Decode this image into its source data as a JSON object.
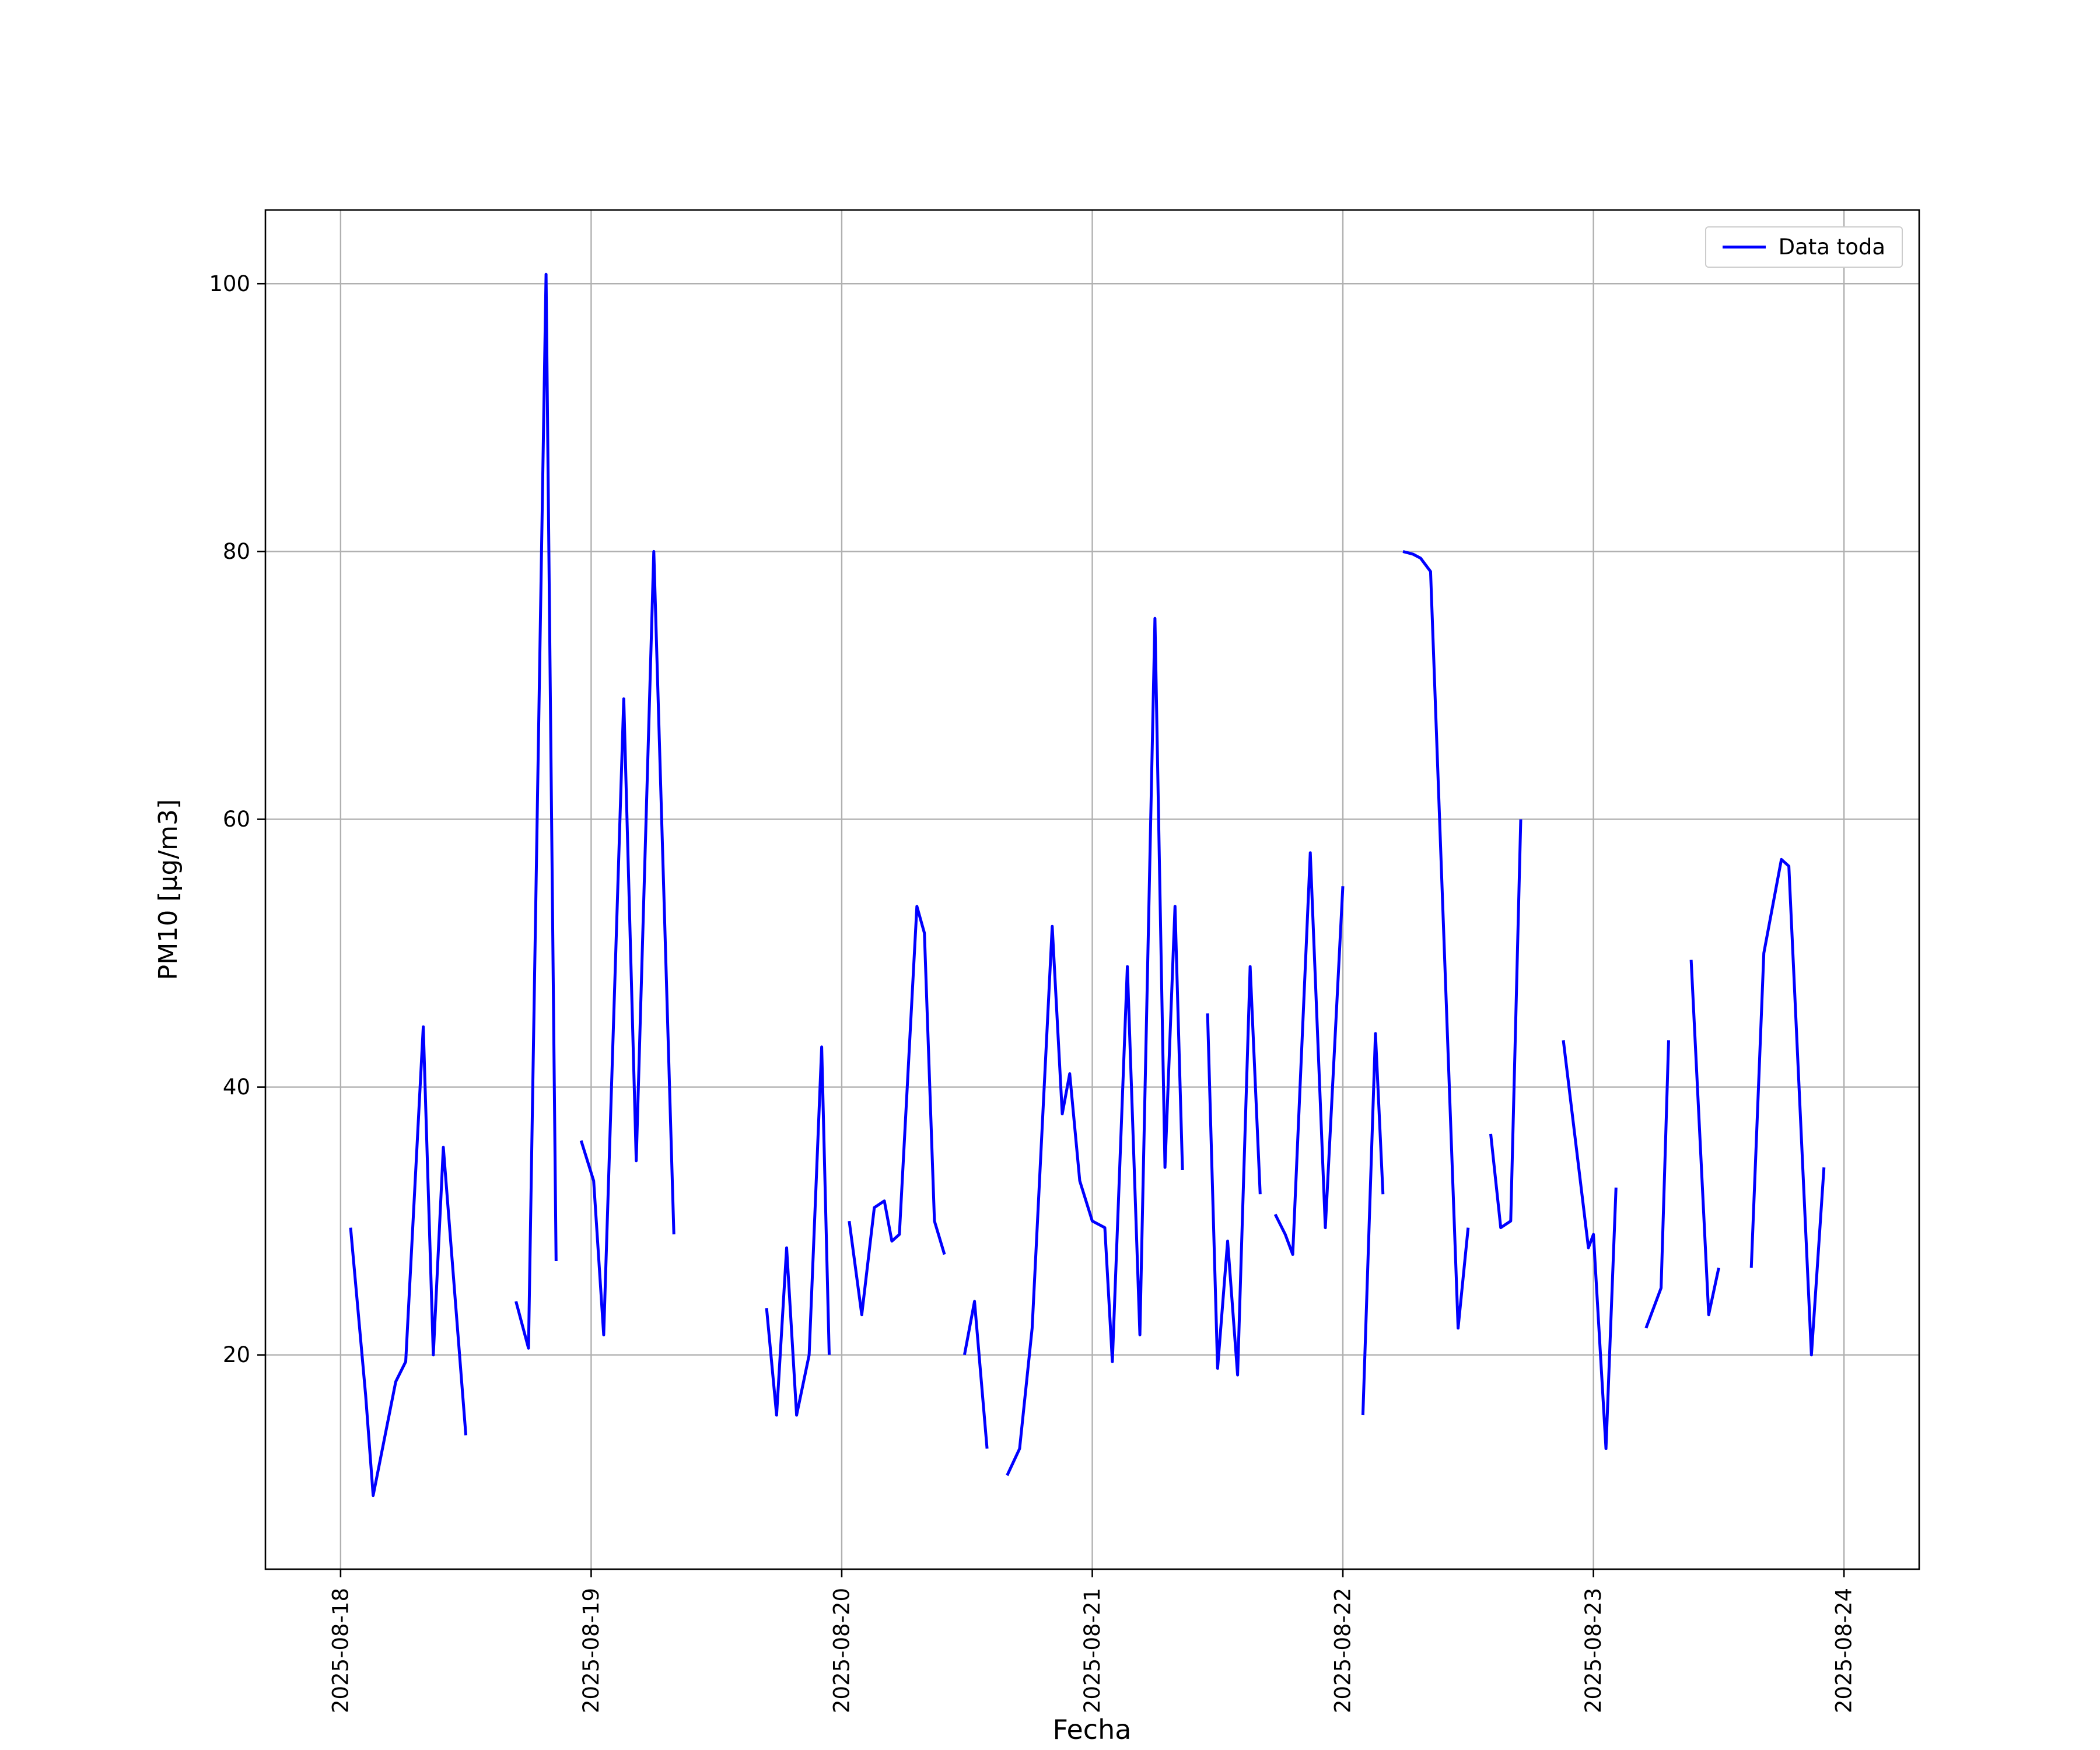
{
  "figure": {
    "background": "#ffffff"
  },
  "chart_data": {
    "type": "line",
    "title": "",
    "xlabel": "Fecha",
    "ylabel": "PM10 [µg/m3]",
    "legend_label": "Data toda",
    "legend_position": "upper right",
    "line_color": "#0000ff",
    "axis_color": "#000000",
    "grid": true,
    "grid_color": "#b0b0b0",
    "x_axis_epoch": "2025-08-18",
    "x_unit": "days since 2025-08-18",
    "x_tick_days": [
      0,
      1,
      2,
      3,
      4,
      5,
      6
    ],
    "x_tick_labels": [
      "2025-08-18",
      "2025-08-19",
      "2025-08-20",
      "2025-08-21",
      "2025-08-22",
      "2025-08-23",
      "2025-08-24"
    ],
    "y_ticks": [
      20,
      40,
      60,
      80,
      100
    ],
    "xlim_days": [
      -0.3,
      6.3
    ],
    "ylim": [
      4,
      105.5
    ],
    "segments": [
      [
        [
          0.04,
          29.5
        ],
        [
          0.1,
          17
        ],
        [
          0.13,
          9.5
        ],
        [
          0.22,
          18
        ],
        [
          0.26,
          19.5
        ],
        [
          0.33,
          44.5
        ],
        [
          0.37,
          20
        ],
        [
          0.41,
          35.5
        ],
        [
          0.5,
          14
        ]
      ],
      [
        [
          0.7,
          24
        ],
        [
          0.75,
          20.5
        ],
        [
          0.82,
          100.7
        ],
        [
          0.86,
          27
        ]
      ],
      [
        [
          0.96,
          36
        ],
        [
          1.01,
          33
        ],
        [
          1.05,
          21.5
        ],
        [
          1.13,
          69
        ],
        [
          1.18,
          34.5
        ],
        [
          1.25,
          80
        ],
        [
          1.33,
          29
        ]
      ],
      [
        [
          1.7,
          23.5
        ],
        [
          1.74,
          15.5
        ],
        [
          1.78,
          28
        ],
        [
          1.82,
          15.5
        ],
        [
          1.87,
          20
        ],
        [
          1.92,
          43
        ],
        [
          1.95,
          20
        ]
      ],
      [
        [
          2.03,
          30
        ],
        [
          2.08,
          23
        ],
        [
          2.13,
          31
        ],
        [
          2.17,
          31.5
        ],
        [
          2.2,
          28.5
        ],
        [
          2.23,
          29
        ],
        [
          2.3,
          53.5
        ],
        [
          2.33,
          51.5
        ],
        [
          2.37,
          30
        ],
        [
          2.41,
          27.5
        ]
      ],
      [
        [
          2.49,
          20
        ],
        [
          2.53,
          24
        ],
        [
          2.58,
          13
        ]
      ],
      [
        [
          2.66,
          11
        ],
        [
          2.71,
          13
        ],
        [
          2.76,
          22
        ],
        [
          2.84,
          52
        ],
        [
          2.88,
          38
        ],
        [
          2.91,
          41
        ],
        [
          2.95,
          33
        ],
        [
          3.0,
          30
        ],
        [
          3.05,
          29.5
        ],
        [
          3.08,
          19.5
        ],
        [
          3.14,
          49
        ],
        [
          3.19,
          21.5
        ],
        [
          3.25,
          75
        ],
        [
          3.29,
          34
        ],
        [
          3.33,
          53.5
        ],
        [
          3.36,
          33.8
        ]
      ],
      [
        [
          3.46,
          45.5
        ],
        [
          3.5,
          19
        ],
        [
          3.54,
          28.5
        ],
        [
          3.58,
          18.5
        ],
        [
          3.63,
          49
        ],
        [
          3.67,
          32
        ]
      ],
      [
        [
          3.73,
          30.5
        ],
        [
          3.77,
          29
        ],
        [
          3.8,
          27.5
        ],
        [
          3.87,
          57.5
        ],
        [
          3.93,
          29.5
        ],
        [
          4.0,
          55
        ]
      ],
      [
        [
          4.08,
          15.5
        ],
        [
          4.13,
          44
        ],
        [
          4.16,
          32
        ]
      ],
      [
        [
          4.24,
          80
        ],
        [
          4.28,
          79.8
        ],
        [
          4.31,
          79.5
        ],
        [
          4.35,
          78.5
        ],
        [
          4.46,
          22
        ],
        [
          4.5,
          29.5
        ]
      ],
      [
        [
          4.59,
          36.5
        ],
        [
          4.63,
          29.5
        ],
        [
          4.67,
          30
        ],
        [
          4.71,
          60
        ]
      ],
      [
        [
          4.88,
          43.5
        ],
        [
          4.98,
          28
        ],
        [
          5.0,
          29
        ],
        [
          5.05,
          13
        ],
        [
          5.09,
          32.5
        ]
      ],
      [
        [
          5.21,
          22
        ],
        [
          5.27,
          25
        ],
        [
          5.3,
          43.5
        ]
      ],
      [
        [
          5.39,
          49.5
        ],
        [
          5.46,
          23
        ],
        [
          5.5,
          26.5
        ]
      ],
      [
        [
          5.63,
          26.5
        ],
        [
          5.68,
          50
        ],
        [
          5.75,
          57
        ],
        [
          5.78,
          56.5
        ],
        [
          5.87,
          20
        ],
        [
          5.92,
          34
        ]
      ]
    ]
  }
}
